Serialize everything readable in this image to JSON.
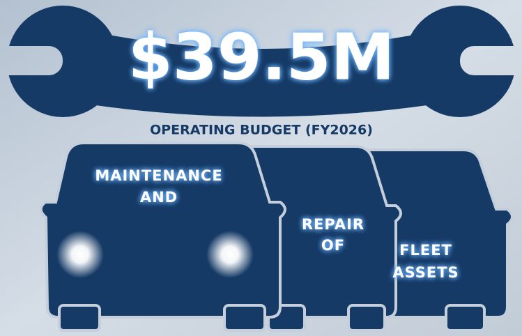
{
  "headline": {
    "amount": "$39.5M",
    "subtitle": "OPERATING BUDGET (FY2026)"
  },
  "cars": [
    {
      "lines": [
        "MAINTENANCE",
        "AND"
      ]
    },
    {
      "lines": [
        "REPAIR",
        "OF"
      ]
    },
    {
      "lines": [
        "FLEET",
        "ASSETS"
      ]
    }
  ]
}
